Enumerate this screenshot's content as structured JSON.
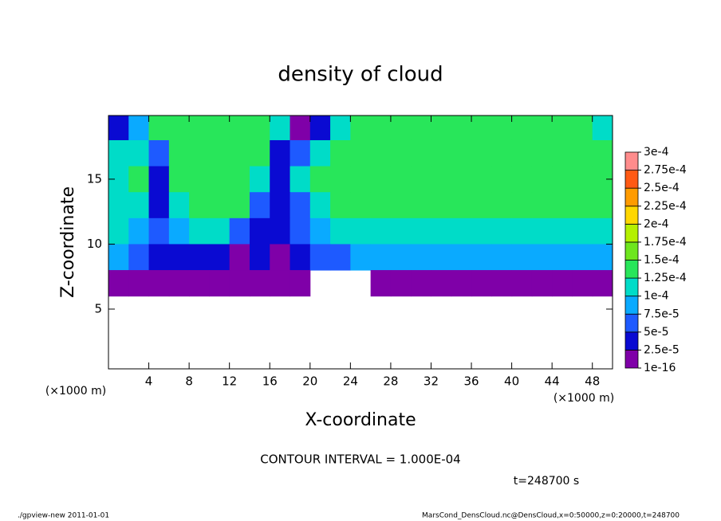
{
  "chart_data": {
    "type": "heatmap",
    "title": "density of cloud",
    "x_label": "X-coordinate",
    "y_label": "Z-coordinate",
    "x_unit": "(×1000 m)",
    "y_unit": "(×1000 m)",
    "note": "CONTOUR INTERVAL = 1.000E-04",
    "time": "t=248700 s",
    "footer_left": "./gpview-new  2011-01-01",
    "footer_right": "MarsCond_DensCloud.nc@DensCloud,x=0:50000,z=0:20000,t=248700",
    "xlim": [
      0,
      50
    ],
    "ylim": [
      0.4,
      19.9
    ],
    "xticks": [
      4,
      8,
      12,
      16,
      20,
      24,
      28,
      32,
      36,
      40,
      44,
      48
    ],
    "yticks": [
      5,
      10,
      15
    ],
    "x": [
      1,
      3,
      5,
      7,
      9,
      11,
      13,
      15,
      17,
      19,
      21,
      23,
      25,
      27,
      29,
      31,
      33,
      35,
      37,
      39,
      41,
      43,
      45,
      47,
      49
    ],
    "y": [
      19,
      17,
      15,
      13,
      11,
      9,
      7,
      5,
      3,
      1
    ],
    "z": [
      [
        4e-05,
        8e-05,
        0.00013,
        0.00013,
        0.00013,
        0.00013,
        0.00013,
        0.00013,
        0.00012,
        2e-05,
        3e-05,
        0.00011,
        0.00013,
        0.00013,
        0.00013,
        0.00013,
        0.00013,
        0.00013,
        0.00013,
        0.00013,
        0.00013,
        0.00013,
        0.00013,
        0.00013,
        0.00012
      ],
      [
        0.0001,
        0.00012,
        5e-05,
        0.00014,
        0.00014,
        0.00014,
        0.00014,
        0.00013,
        3e-05,
        6e-05,
        0.00012,
        0.00013,
        0.00014,
        0.00014,
        0.00014,
        0.00014,
        0.00014,
        0.00014,
        0.00014,
        0.00014,
        0.00014,
        0.00014,
        0.00014,
        0.00014,
        0.00014
      ],
      [
        0.00012,
        0.00013,
        3e-05,
        0.00014,
        0.000145,
        0.000145,
        0.000145,
        0.00012,
        3e-05,
        0.0001,
        0.00013,
        0.00014,
        0.000145,
        0.000145,
        0.000145,
        0.000145,
        0.000145,
        0.000145,
        0.000145,
        0.000145,
        0.000145,
        0.000145,
        0.000145,
        0.000145,
        0.000145
      ],
      [
        0.00012,
        0.00012,
        4e-05,
        0.00012,
        0.00014,
        0.00014,
        0.00013,
        6e-05,
        4e-05,
        7e-05,
        0.00011,
        0.00013,
        0.00014,
        0.00014,
        0.00014,
        0.00014,
        0.00014,
        0.00014,
        0.00014,
        0.00014,
        0.00014,
        0.00014,
        0.00014,
        0.00014,
        0.00014
      ],
      [
        0.00011,
        9e-05,
        5e-05,
        9e-05,
        0.00011,
        0.00011,
        7e-05,
        4e-05,
        3e-05,
        5e-05,
        8e-05,
        0.00011,
        0.00012,
        0.00012,
        0.00012,
        0.00012,
        0.00012,
        0.00012,
        0.00012,
        0.00012,
        0.00012,
        0.00012,
        0.00012,
        0.00012,
        0.00012
      ],
      [
        8e-05,
        6e-05,
        4e-05,
        3e-05,
        3e-05,
        4e-05,
        2e-05,
        3e-05,
        2e-05,
        4e-05,
        5e-05,
        7e-05,
        8e-05,
        9e-05,
        9e-05,
        9e-05,
        9e-05,
        9e-05,
        9e-05,
        9e-05,
        9e-05,
        9e-05,
        9e-05,
        9e-05,
        9e-05
      ],
      [
        1e-05,
        1e-05,
        1.5e-05,
        1.5e-05,
        1e-05,
        1e-05,
        1e-05,
        1e-05,
        1e-05,
        1e-05,
        null,
        null,
        null,
        1e-05,
        1e-05,
        1e-05,
        1e-05,
        1e-05,
        1e-05,
        1e-05,
        1e-05,
        1e-05,
        1e-05,
        1e-05,
        1e-05
      ],
      [
        null,
        null,
        null,
        null,
        null,
        null,
        null,
        null,
        null,
        null,
        null,
        null,
        null,
        null,
        null,
        null,
        null,
        null,
        null,
        null,
        null,
        null,
        null,
        null,
        null
      ],
      [
        null,
        null,
        null,
        null,
        null,
        null,
        null,
        null,
        null,
        null,
        null,
        null,
        null,
        null,
        null,
        null,
        null,
        null,
        null,
        null,
        null,
        null,
        null,
        null,
        null
      ],
      [
        null,
        null,
        null,
        null,
        null,
        null,
        null,
        null,
        null,
        null,
        null,
        null,
        null,
        null,
        null,
        null,
        null,
        null,
        null,
        null,
        null,
        null,
        null,
        null,
        null
      ]
    ],
    "levels": [
      {
        "value": 1e-16,
        "label": "1e-16"
      },
      {
        "value": 2.5e-05,
        "label": "2.5e-5"
      },
      {
        "value": 5e-05,
        "label": "5e-5"
      },
      {
        "value": 7.5e-05,
        "label": "7.5e-5"
      },
      {
        "value": 0.0001,
        "label": "1e-4"
      },
      {
        "value": 0.000125,
        "label": "1.25e-4"
      },
      {
        "value": 0.00015,
        "label": "1.5e-4"
      },
      {
        "value": 0.000175,
        "label": "1.75e-4"
      },
      {
        "value": 0.0002,
        "label": "2e-4"
      },
      {
        "value": 0.000225,
        "label": "2.25e-4"
      },
      {
        "value": 0.00025,
        "label": "2.5e-4"
      },
      {
        "value": 0.000275,
        "label": "2.75e-4"
      },
      {
        "value": 0.0003,
        "label": "3e-4"
      }
    ],
    "colors": [
      "#7f00a8",
      "#0a0ad2",
      "#1e5aff",
      "#0aaaff",
      "#00dcc8",
      "#28e65a",
      "#6ee61e",
      "#b4f000",
      "#ffd700",
      "#ff9b00",
      "#ff5a14",
      "#ff8c8c"
    ]
  }
}
